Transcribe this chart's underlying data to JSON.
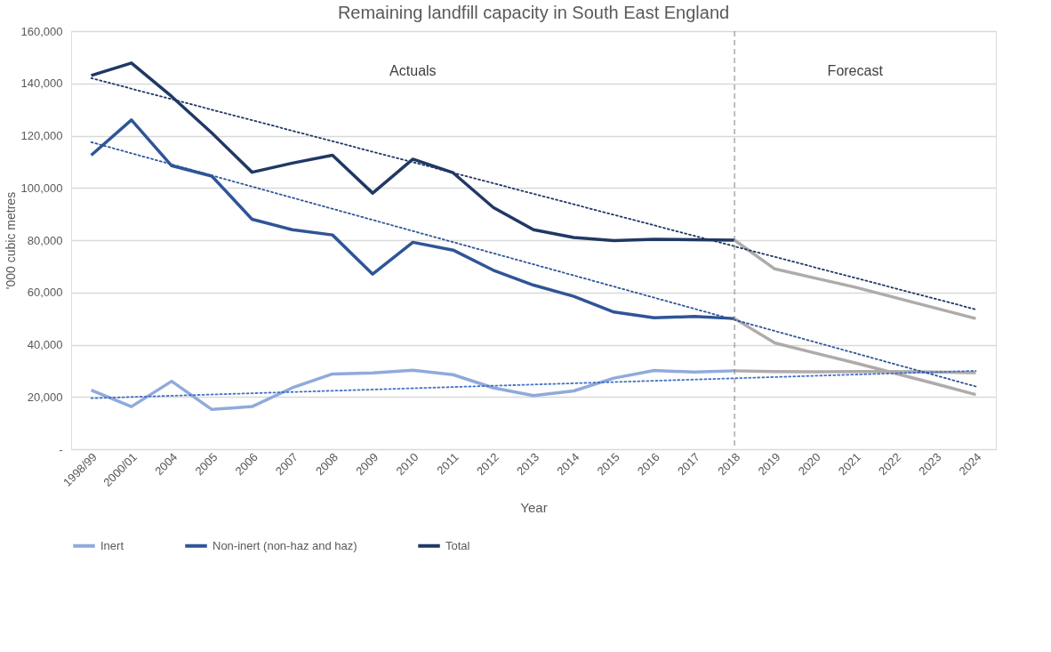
{
  "chart_data": {
    "type": "line",
    "title": "Remaining landfill capacity in South East England",
    "xlabel": "Year",
    "ylabel": "'000 cubic metres",
    "categories": [
      "1998/99",
      "2000/01",
      "2004",
      "2005",
      "2006",
      "2007",
      "2008",
      "2009",
      "2010",
      "2011",
      "2012",
      "2013",
      "2014",
      "2015",
      "2016",
      "2017",
      "2018",
      "2019",
      "2020",
      "2021",
      "2022",
      "2023",
      "2024"
    ],
    "series": [
      {
        "name": "Inert",
        "color": "#8faadc",
        "values": [
          22600,
          16300,
          26000,
          15200,
          16300,
          23500,
          28800,
          29200,
          30200,
          28500,
          23500,
          20500,
          22300,
          27200,
          30100,
          29500,
          30000,
          null,
          null,
          null,
          null,
          null,
          null
        ]
      },
      {
        "name": "Non-inert (non-haz and haz)",
        "color": "#2f5597",
        "values": [
          112500,
          126000,
          108500,
          104500,
          88000,
          84000,
          82000,
          67000,
          79200,
          76200,
          68500,
          62800,
          58500,
          52500,
          50300,
          50800,
          50000,
          null,
          null,
          null,
          null,
          null,
          null
        ]
      },
      {
        "name": "Total",
        "color": "#203864",
        "values": [
          143000,
          147800,
          135000,
          121000,
          106000,
          109500,
          112500,
          98000,
          111000,
          105800,
          92500,
          84000,
          81000,
          79800,
          80300,
          80200,
          80000,
          null,
          null,
          null,
          null,
          null,
          null
        ]
      },
      {
        "color": "#afabab",
        "values": [
          null,
          null,
          null,
          null,
          null,
          null,
          null,
          null,
          null,
          null,
          null,
          null,
          null,
          null,
          null,
          null,
          30000,
          29700,
          29600,
          29700,
          29700,
          29500,
          29300
        ]
      },
      {
        "color": "#afabab",
        "values": [
          null,
          null,
          null,
          null,
          null,
          null,
          null,
          null,
          null,
          null,
          null,
          null,
          null,
          null,
          null,
          null,
          50000,
          40700,
          36800,
          33000,
          29000,
          25000,
          20900
        ]
      },
      {
        "color": "#afabab",
        "values": [
          null,
          null,
          null,
          null,
          null,
          null,
          null,
          null,
          null,
          null,
          null,
          null,
          null,
          null,
          null,
          null,
          80000,
          69000,
          65500,
          62000,
          58000,
          54000,
          50000
        ]
      },
      {
        "color": "#4472c4",
        "line_style": "dotted",
        "values": [
          19500,
          null,
          null,
          null,
          null,
          null,
          null,
          null,
          null,
          null,
          null,
          null,
          null,
          null,
          null,
          null,
          null,
          null,
          null,
          null,
          null,
          null,
          30000
        ]
      },
      {
        "color": "#2f5597",
        "line_style": "dotted",
        "values": [
          117500,
          null,
          null,
          null,
          null,
          null,
          null,
          null,
          null,
          null,
          null,
          null,
          null,
          null,
          null,
          null,
          null,
          null,
          null,
          null,
          null,
          null,
          24000
        ]
      },
      {
        "color": "#203864",
        "line_style": "dotted",
        "values": [
          142000,
          null,
          null,
          null,
          null,
          null,
          null,
          null,
          null,
          null,
          null,
          null,
          null,
          null,
          null,
          null,
          null,
          null,
          null,
          null,
          null,
          null,
          53500
        ]
      }
    ],
    "ylim": [
      0,
      160000
    ],
    "yticks": [
      {
        "value": 0,
        "label": "-"
      },
      {
        "value": 20000,
        "label": "20,000"
      },
      {
        "value": 40000,
        "label": "40,000"
      },
      {
        "value": 60000,
        "label": "60,000"
      },
      {
        "value": 80000,
        "label": "80,000"
      },
      {
        "value": 100000,
        "label": "100,000"
      },
      {
        "value": 120000,
        "label": "120,000"
      },
      {
        "value": 140000,
        "label": "140,000"
      },
      {
        "value": 160000,
        "label": "160,000"
      }
    ],
    "ref_lines": [
      {
        "axis": "x",
        "value": "2018",
        "color": "#7f7f7f",
        "line_style": "dashed"
      }
    ],
    "annotations": [
      "Actuals",
      "Forecast"
    ],
    "grid": "y",
    "legend": "bottom",
    "line_style": "solid"
  }
}
